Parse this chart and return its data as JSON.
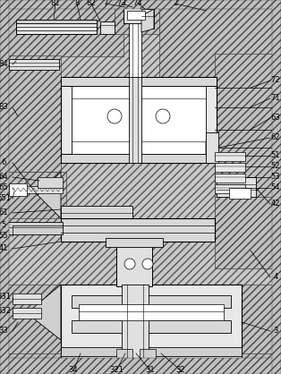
{
  "fig_width": 3.14,
  "fig_height": 4.18,
  "dpi": 100,
  "bg_color": "#d4d4d4",
  "hatch_bg": "#c8c8c8",
  "line_color": "#000000",
  "label_fontsize": 6.0
}
